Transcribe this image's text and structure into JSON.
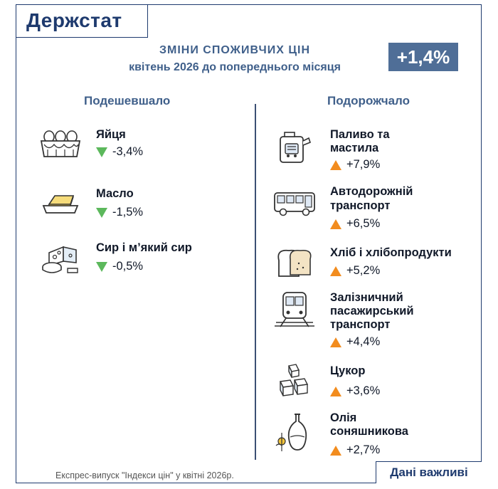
{
  "header": {
    "logo": "Держстат",
    "title": "ЗМІНИ СПОЖИВЧИХ ЦІН",
    "subtitle": "квітень 2026 до попереднього місяця",
    "total": "+1,4%"
  },
  "left": {
    "heading": "Подешевшало",
    "items": [
      {
        "name": "Яйця",
        "value": "-3,4%",
        "icon": "eggs-icon"
      },
      {
        "name": "Масло",
        "value": "-1,5%",
        "icon": "butter-icon"
      },
      {
        "name": "Сир і м’який сир",
        "value": "-0,5%",
        "icon": "cheese-icon"
      }
    ]
  },
  "right": {
    "heading": "Подорожчало",
    "items": [
      {
        "name1": "Паливо та",
        "name2": "мастила",
        "value": "+7,9%",
        "icon": "fuel-icon"
      },
      {
        "name1": "Автодорожній",
        "name2": "транспорт",
        "value": "+6,5%",
        "icon": "bus-icon"
      },
      {
        "name1": "Хліб і хлібопродукти",
        "value": "+5,2%",
        "icon": "bread-icon"
      },
      {
        "name1": "Залізничний",
        "name2": "пасажирський",
        "name3": "транспорт",
        "value": "+4,4%",
        "icon": "train-icon"
      },
      {
        "name1": "Цукор",
        "value": "+3,6%",
        "icon": "sugar-icon"
      },
      {
        "name1": "Олія",
        "name2": "соняшникова",
        "value": "+2,7%",
        "icon": "oil-icon"
      }
    ]
  },
  "colors": {
    "down": "#5cb85c",
    "up": "#f28c1e",
    "badge": "#4f6e97",
    "brand": "#1e3a6e"
  },
  "footer": {
    "note": "Експрес-випуск \"Індекси цін\" у квітні 2026р.",
    "button": "Дані важливі"
  }
}
